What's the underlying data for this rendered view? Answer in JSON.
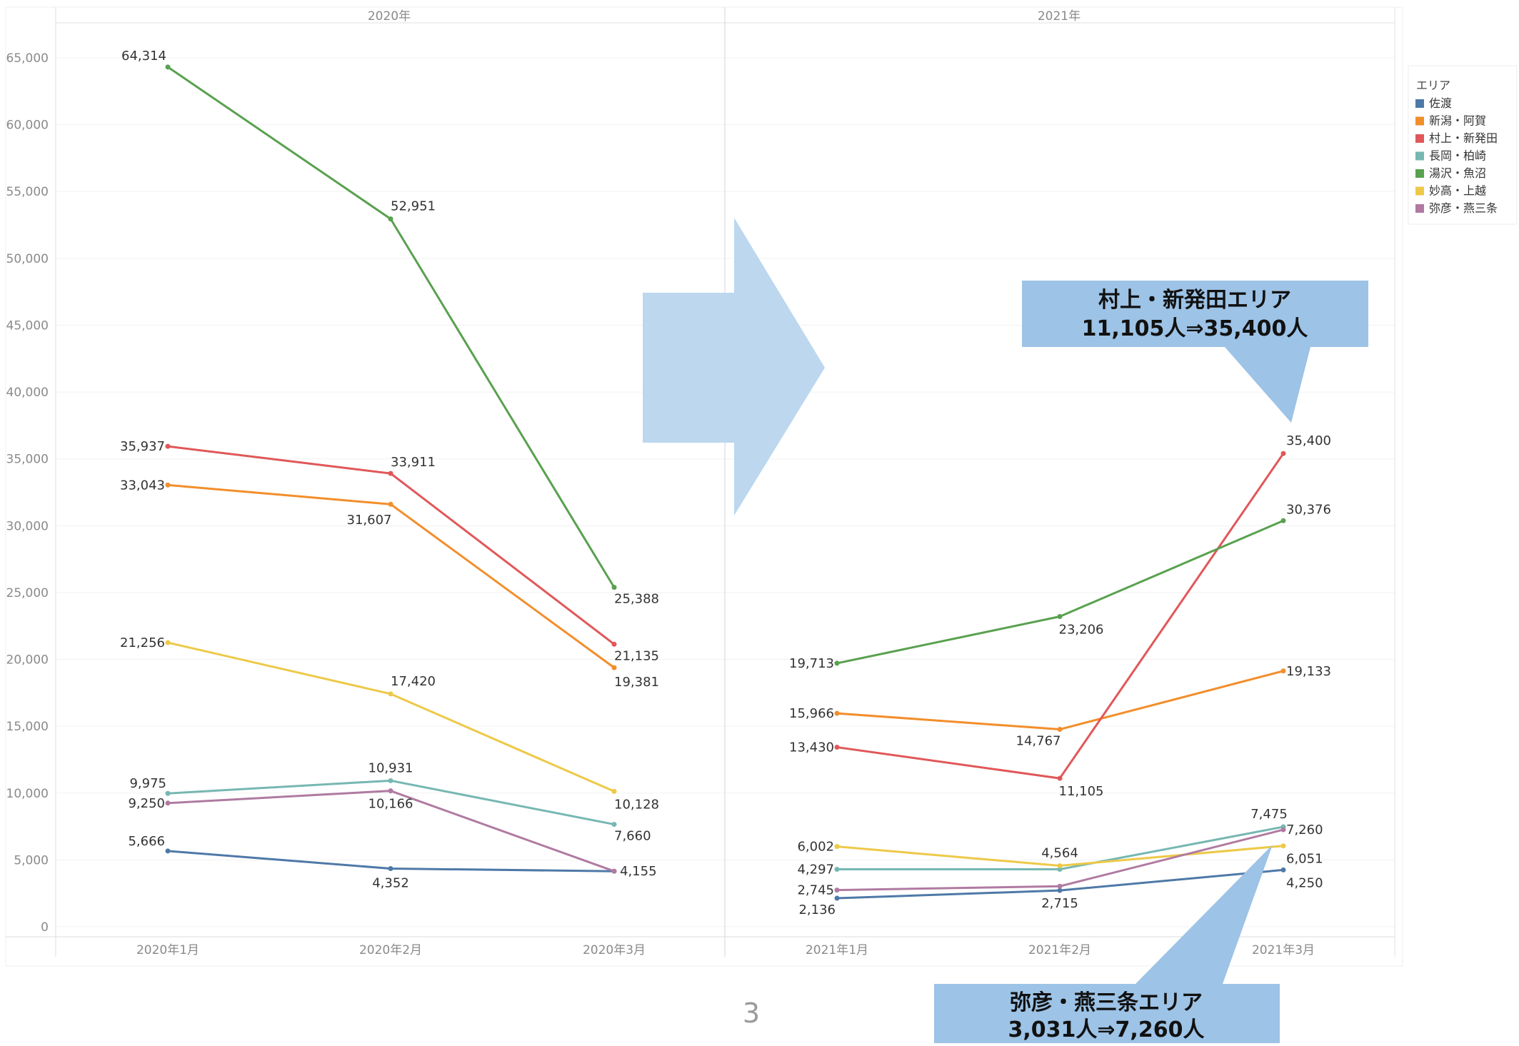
{
  "page_number": "3",
  "legend": {
    "title": "エリア",
    "items": [
      {
        "label": "佐渡",
        "color": "#4e79a7"
      },
      {
        "label": "新潟・阿賀",
        "color": "#f28e2b"
      },
      {
        "label": "村上・新発田",
        "color": "#e15759"
      },
      {
        "label": "長岡・柏崎",
        "color": "#76b7b2"
      },
      {
        "label": "湯沢・魚沼",
        "color": "#59a14f"
      },
      {
        "label": "妙高・上越",
        "color": "#edc948"
      },
      {
        "label": "弥彦・燕三条",
        "color": "#b07aa1"
      }
    ]
  },
  "callouts": {
    "murakami": {
      "line1": "村上・新発田エリア",
      "line2": "11,105人⇒35,400人"
    },
    "yahiko": {
      "line1": "弥彦・燕三条エリア",
      "line2": "3,031人⇒7,260人"
    }
  },
  "chart_data": {
    "type": "line",
    "ylim": [
      0,
      65000
    ],
    "yticks": [
      0,
      5000,
      10000,
      15000,
      20000,
      25000,
      30000,
      35000,
      40000,
      45000,
      50000,
      55000,
      60000,
      65000
    ],
    "ytick_labels": [
      "0",
      "5,000",
      "10,000",
      "15,000",
      "20,000",
      "25,000",
      "30,000",
      "35,000",
      "40,000",
      "45,000",
      "50,000",
      "55,000",
      "60,000",
      "65,000"
    ],
    "grid": true,
    "legend_position": "right",
    "panes": [
      {
        "title": "2020年",
        "categories": [
          "2020年1月",
          "2020年2月",
          "2020年3月"
        ],
        "series": [
          {
            "name": "佐渡",
            "values": [
              5666,
              4352,
              4155
            ],
            "labels": [
              "5,666",
              "4,352",
              "4,155"
            ]
          },
          {
            "name": "新潟・阿賀",
            "values": [
              33043,
              31607,
              19381
            ],
            "labels": [
              "33,043",
              "31,607",
              "19,381"
            ]
          },
          {
            "name": "村上・新発田",
            "values": [
              35937,
              33911,
              21135
            ],
            "labels": [
              "35,937",
              "33,911",
              "21,135"
            ]
          },
          {
            "name": "長岡・柏崎",
            "values": [
              9975,
              10931,
              7660
            ],
            "labels": [
              "9,975",
              "10,931",
              "7,660"
            ]
          },
          {
            "name": "湯沢・魚沼",
            "values": [
              64314,
              52951,
              25388
            ],
            "labels": [
              "64,314",
              "52,951",
              "25,388"
            ]
          },
          {
            "name": "妙高・上越",
            "values": [
              21256,
              17420,
              10128
            ],
            "labels": [
              "21,256",
              "17,420",
              "10,128"
            ]
          },
          {
            "name": "弥彦・燕三条",
            "values": [
              9250,
              10166,
              4155
            ],
            "labels": [
              "9,250",
              "10,166",
              ""
            ]
          }
        ]
      },
      {
        "title": "2021年",
        "categories": [
          "2021年1月",
          "2021年2月",
          "2021年3月"
        ],
        "series": [
          {
            "name": "佐渡",
            "values": [
              2136,
              2715,
              4250
            ],
            "labels": [
              "2,136",
              "2,715",
              "4,250"
            ]
          },
          {
            "name": "新潟・阿賀",
            "values": [
              15966,
              14767,
              19133
            ],
            "labels": [
              "15,966",
              "14,767",
              "19,133"
            ]
          },
          {
            "name": "村上・新発田",
            "values": [
              13430,
              11105,
              35400
            ],
            "labels": [
              "13,430",
              "11,105",
              "35,400"
            ]
          },
          {
            "name": "長岡・柏崎",
            "values": [
              4297,
              4297,
              7475
            ],
            "labels": [
              "4,297",
              "",
              "7,475"
            ]
          },
          {
            "name": "湯沢・魚沼",
            "values": [
              19713,
              23206,
              30376
            ],
            "labels": [
              "19,713",
              "23,206",
              "30,376"
            ]
          },
          {
            "name": "妙高・上越",
            "values": [
              6002,
              4564,
              6051
            ],
            "labels": [
              "6,002",
              "4,564",
              "6,051"
            ]
          },
          {
            "name": "弥彦・燕三条",
            "values": [
              2745,
              3031,
              7260
            ],
            "labels": [
              "2,745",
              "",
              "7,260"
            ]
          }
        ]
      }
    ]
  }
}
